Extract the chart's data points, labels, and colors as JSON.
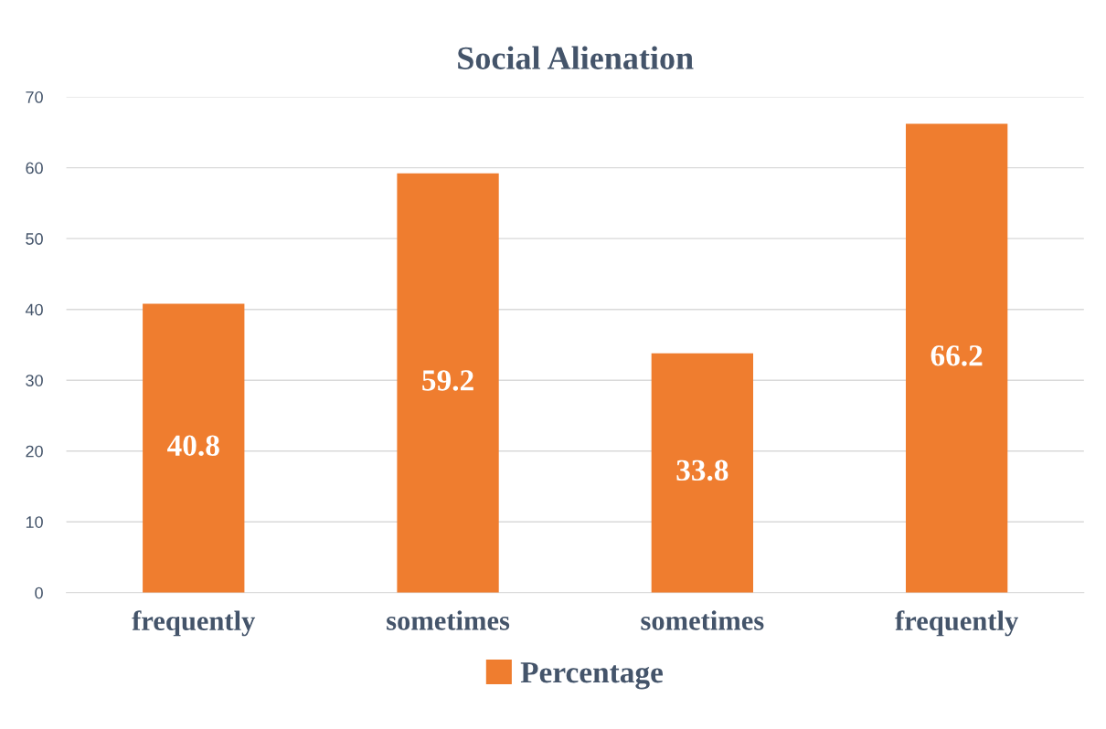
{
  "chart_data": {
    "type": "bar",
    "title": "Social Alienation",
    "categories": [
      "frequently",
      "sometimes",
      "sometimes",
      "frequently"
    ],
    "series": [
      {
        "name": "Percentage",
        "color": "#ef7d2f",
        "values": [
          40.8,
          59.2,
          33.8,
          66.2
        ]
      }
    ],
    "ylim": [
      0,
      70
    ],
    "yticks": [
      0,
      10,
      20,
      30,
      40,
      50,
      60,
      70
    ],
    "grid": "y",
    "legend": "bottom",
    "data_labels": true
  }
}
